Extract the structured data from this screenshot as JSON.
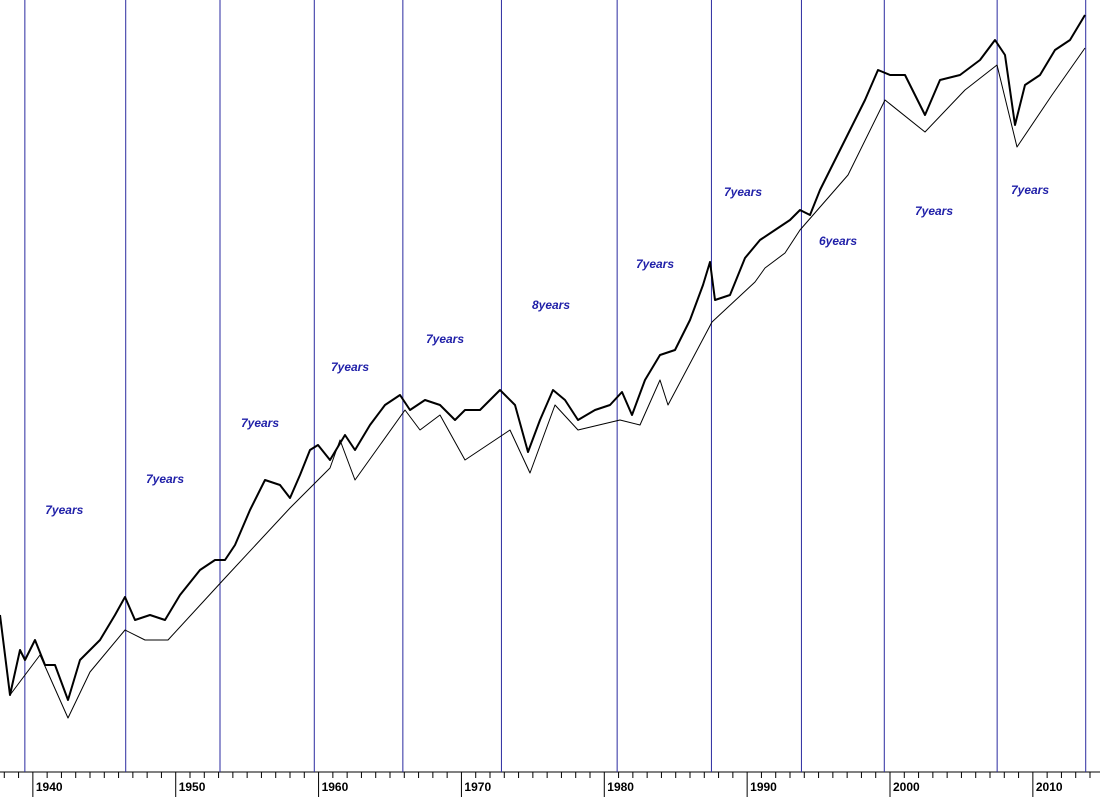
{
  "chart_data": {
    "type": "line",
    "xlim": [
      1937.7,
      2014.7
    ],
    "ylim": [
      0,
      770
    ],
    "xticks": [
      1940,
      1950,
      1960,
      1970,
      1980,
      1990,
      2000,
      2010
    ],
    "xminorticks": [
      1938,
      1939,
      1941,
      1942,
      1943,
      1944,
      1945,
      1946,
      1947,
      1948,
      1949,
      1951,
      1952,
      1953,
      1954,
      1955,
      1956,
      1957,
      1958,
      1959,
      1961,
      1962,
      1963,
      1964,
      1965,
      1966,
      1967,
      1968,
      1969,
      1971,
      1972,
      1973,
      1974,
      1975,
      1976,
      1977,
      1978,
      1979,
      1981,
      1982,
      1983,
      1984,
      1985,
      1986,
      1987,
      1988,
      1989,
      1991,
      1992,
      1993,
      1994,
      1995,
      1996,
      1997,
      1998,
      1999,
      2001,
      2002,
      2003,
      2004,
      2005,
      2006,
      2007,
      2008,
      2009,
      2011,
      2012,
      2013,
      2014
    ],
    "vlines": [
      1939.44,
      1946.5,
      1953.1,
      1959.7,
      1965.9,
      1972.8,
      1980.9,
      1987.5,
      1993.8,
      1999.6,
      2007.5,
      2013.7
    ],
    "vline_color": "#2a2aa0",
    "series": [
      {
        "color": "#000000",
        "width": 2,
        "x": [
          1937.7,
          1938.4,
          1939.1,
          1939.45,
          1940.15,
          1940.85,
          1941.55,
          1942.46,
          1943.3,
          1944.7,
          1945.75,
          1946.45,
          1947.15,
          1948.2,
          1949.25,
          1950.3,
          1951.7,
          1952.75,
          1953.45,
          1954.15,
          1955.2,
          1956.25,
          1957.3,
          1958.0,
          1958.7,
          1959.4,
          1959.96,
          1960.8,
          1961.85,
          1962.55,
          1963.6,
          1964.65,
          1965.7,
          1966.4,
          1967.45,
          1968.5,
          1969.55,
          1970.25,
          1971.3,
          1972.7,
          1973.75,
          1974.66,
          1975.5,
          1976.41,
          1977.25,
          1978.16,
          1979.35,
          1980.4,
          1981.24,
          1981.94,
          1982.85,
          1983.9,
          1984.95,
          1986.0,
          1986.91,
          1987.4,
          1987.75,
          1988.8,
          1989.85,
          1990.9,
          1991.95,
          1993.0,
          1993.7,
          1994.4,
          1995.1,
          1996.15,
          1997.2,
          1998.25,
          1999.16,
          2000.0,
          2001.05,
          2001.75,
          2002.45,
          2003.5,
          2004.9,
          2006.3,
          2007.35,
          2008.05,
          2008.75,
          2009.45,
          2010.5,
          2011.55,
          2012.6,
          2013.65
        ],
        "values": [
          155,
          75,
          120,
          110,
          130,
          105,
          105,
          70,
          110,
          130,
          155,
          173,
          150,
          155,
          150,
          175,
          200,
          210,
          210,
          225,
          260,
          290,
          285,
          272,
          295,
          320,
          325,
          310,
          335,
          320,
          345,
          365,
          375,
          360,
          370,
          365,
          350,
          360,
          360,
          380,
          365,
          318,
          350,
          380,
          370,
          350,
          360,
          365,
          378,
          355,
          390,
          415,
          420,
          450,
          485,
          508,
          470,
          475,
          512,
          530,
          540,
          550,
          560,
          555,
          580,
          610,
          640,
          670,
          700,
          695,
          695,
          675,
          655,
          690,
          695,
          710,
          730,
          715,
          645,
          685,
          695,
          720,
          730,
          755
        ]
      },
      {
        "color": "#000000",
        "width": 1,
        "x": [
          1938.4,
          1940.5,
          1942.46,
          1944.0,
          1946.45,
          1947.85,
          1949.46,
          1953.45,
          1958.0,
          1960.8,
          1961.5,
          1962.55,
          1966.05,
          1967.1,
          1968.5,
          1970.25,
          1973.4,
          1974.8,
          1976.55,
          1978.16,
          1981.1,
          1982.5,
          1983.9,
          1984.46,
          1987.54,
          1990.55,
          1991.25,
          1992.65,
          1993.7,
          1997.06,
          1999.65,
          2002.45,
          2005.25,
          2007.49,
          2008.89,
          2011.34,
          2013.65
        ],
        "values": [
          75,
          115,
          52,
          98,
          140,
          130,
          130,
          192,
          262,
          302,
          330,
          290,
          360,
          340,
          355,
          310,
          340,
          297,
          365,
          340,
          350,
          345,
          390,
          365,
          448,
          488,
          502,
          517,
          540,
          595,
          670,
          638,
          680,
          705,
          623,
          675,
          722
        ]
      }
    ],
    "annotations": [
      {
        "text": "7years",
        "x": 1942.2,
        "y": 259
      },
      {
        "text": "7years",
        "x": 1949.25,
        "y": 290
      },
      {
        "text": "7years",
        "x": 1955.9,
        "y": 346
      },
      {
        "text": "7years",
        "x": 1962.2,
        "y": 402
      },
      {
        "text": "7years",
        "x": 1968.85,
        "y": 430
      },
      {
        "text": "8years",
        "x": 1976.27,
        "y": 464
      },
      {
        "text": "7years",
        "x": 1983.55,
        "y": 505
      },
      {
        "text": "7years",
        "x": 1989.71,
        "y": 577
      },
      {
        "text": "6years",
        "x": 1996.36,
        "y": 528
      },
      {
        "text": "7years",
        "x": 2003.08,
        "y": 558
      },
      {
        "text": "7years",
        "x": 2009.8,
        "y": 579
      }
    ]
  }
}
